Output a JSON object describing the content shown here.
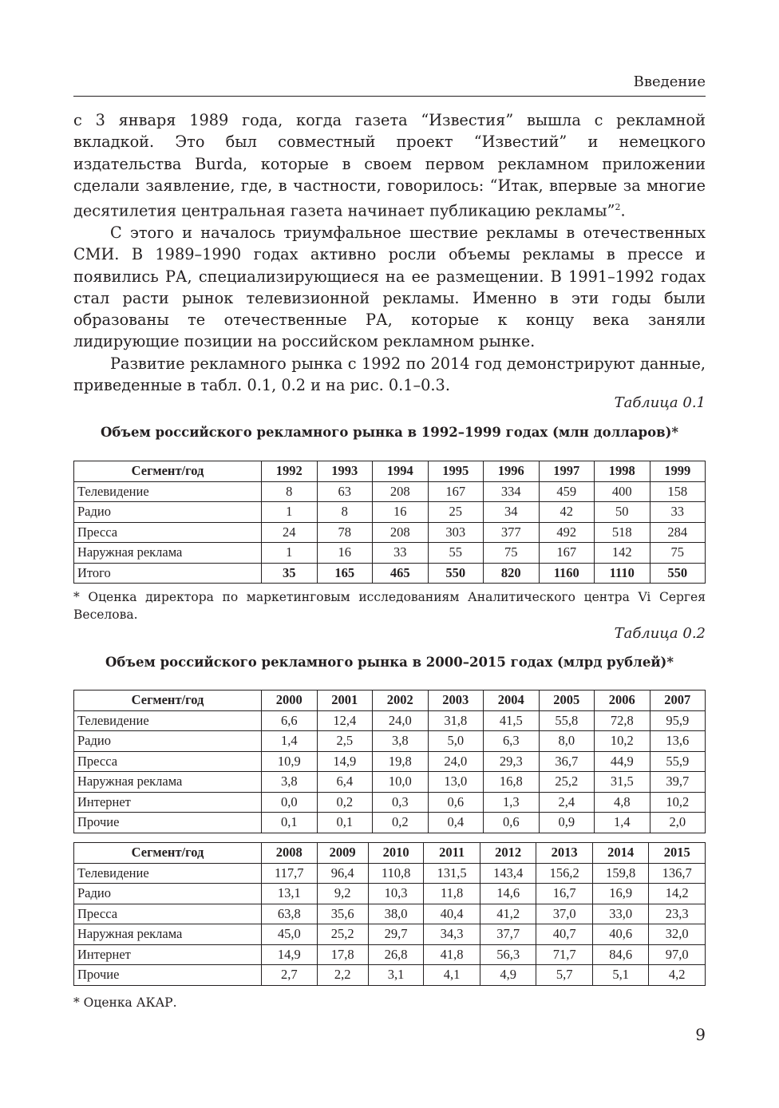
{
  "header": {
    "section": "Введение"
  },
  "paragraphs": [
    "с 3 января 1989 года, когда газета “Известия” вышла с рекламной вкладкой. Это был совместный проект “Известий” и немецкого издательства Burda, которые в своем первом рекламном приложении сделали заявление, где, в частности, говорилось: “Итак, впервые за многие десятилетия центральная газета начинает публикацию рекламы”",
    "С этого и началось триумфальное шествие рекламы в отечественных СМИ. В 1989–1990 годах активно росли объемы рекламы в прессе и появились РА, специализирующиеся на ее размещении. В 1991–1992 годах стал расти рынок телевизионной рекламы. Именно в эти годы были образованы те отечественные РА, которые к концу века заняли лидирующие позиции на российском рекламном рынке.",
    "Развитие рекламного рынка с 1992 по 2014 год демонстрируют данные, приведенные в табл. 0.1, 0.2 и на рис. 0.1–0.3."
  ],
  "footnote_ref": "2",
  "footnote_tail": ".",
  "table1": {
    "caption": "Таблица 0.1",
    "title": "Объем российского рекламного рынка в 1992–1999 годах (млн долларов)*",
    "header": [
      "Сегмент/год",
      "1992",
      "1993",
      "1994",
      "1995",
      "1996",
      "1997",
      "1998",
      "1999"
    ],
    "rows": [
      [
        "Телевидение",
        "8",
        "63",
        "208",
        "167",
        "334",
        "459",
        "400",
        "158"
      ],
      [
        "Радио",
        "1",
        "8",
        "16",
        "25",
        "34",
        "42",
        "50",
        "33"
      ],
      [
        "Пресса",
        "24",
        "78",
        "208",
        "303",
        "377",
        "492",
        "518",
        "284"
      ],
      [
        "Наружная реклама",
        "1",
        "16",
        "33",
        "55",
        "75",
        "167",
        "142",
        "75"
      ],
      [
        "Итого",
        "35",
        "165",
        "465",
        "550",
        "820",
        "1160",
        "1110",
        "550"
      ]
    ],
    "note": "* Оценка директора по маркетинговым исследованиям Аналитического центра Vi Сергея Веселова."
  },
  "table2": {
    "caption": "Таблица 0.2",
    "title": "Объем российского рекламного рынка в 2000–2015 годах (млрд рублей)*",
    "part1": {
      "header": [
        "Сегмент/год",
        "2000",
        "2001",
        "2002",
        "2003",
        "2004",
        "2005",
        "2006",
        "2007"
      ],
      "rows": [
        [
          "Телевидение",
          "6,6",
          "12,4",
          "24,0",
          "31,8",
          "41,5",
          "55,8",
          "72,8",
          "95,9"
        ],
        [
          "Радио",
          "1,4",
          "2,5",
          "3,8",
          "5,0",
          "6,3",
          "8,0",
          "10,2",
          "13,6"
        ],
        [
          "Пресса",
          "10,9",
          "14,9",
          "19,8",
          "24,0",
          "29,3",
          "36,7",
          "44,9",
          "55,9"
        ],
        [
          "Наружная реклама",
          "3,8",
          "6,4",
          "10,0",
          "13,0",
          "16,8",
          "25,2",
          "31,5",
          "39,7"
        ],
        [
          "Интернет",
          "0,0",
          "0,2",
          "0,3",
          "0,6",
          "1,3",
          "2,4",
          "4,8",
          "10,2"
        ],
        [
          "Прочие",
          "0,1",
          "0,1",
          "0,2",
          "0,4",
          "0,6",
          "0,9",
          "1,4",
          "2,0"
        ]
      ]
    },
    "part2": {
      "header": [
        "Сегмент/год",
        "2008",
        "2009",
        "2010",
        "2011",
        "2012",
        "2013",
        "2014",
        "2015"
      ],
      "rows": [
        [
          "Телевидение",
          "117,7",
          "96,4",
          "110,8",
          "131,5",
          "143,4",
          "156,2",
          "159,8",
          "136,7"
        ],
        [
          "Радио",
          "13,1",
          "9,2",
          "10,3",
          "11,8",
          "14,6",
          "16,7",
          "16,9",
          "14,2"
        ],
        [
          "Пресса",
          "63,8",
          "35,6",
          "38,0",
          "40,4",
          "41,2",
          "37,0",
          "33,0",
          "23,3"
        ],
        [
          "Наружная реклама",
          "45,0",
          "25,2",
          "29,7",
          "34,3",
          "37,7",
          "40,7",
          "40,6",
          "32,0"
        ],
        [
          "Интернет",
          "14,9",
          "17,8",
          "26,8",
          "41,8",
          "56,3",
          "71,7",
          "84,6",
          "97,0"
        ],
        [
          "Прочие",
          "2,7",
          "2,2",
          "3,1",
          "4,1",
          "4,9",
          "5,7",
          "5,1",
          "4,2"
        ]
      ]
    },
    "note": "* Оценка АКАР."
  },
  "page_number": "9"
}
